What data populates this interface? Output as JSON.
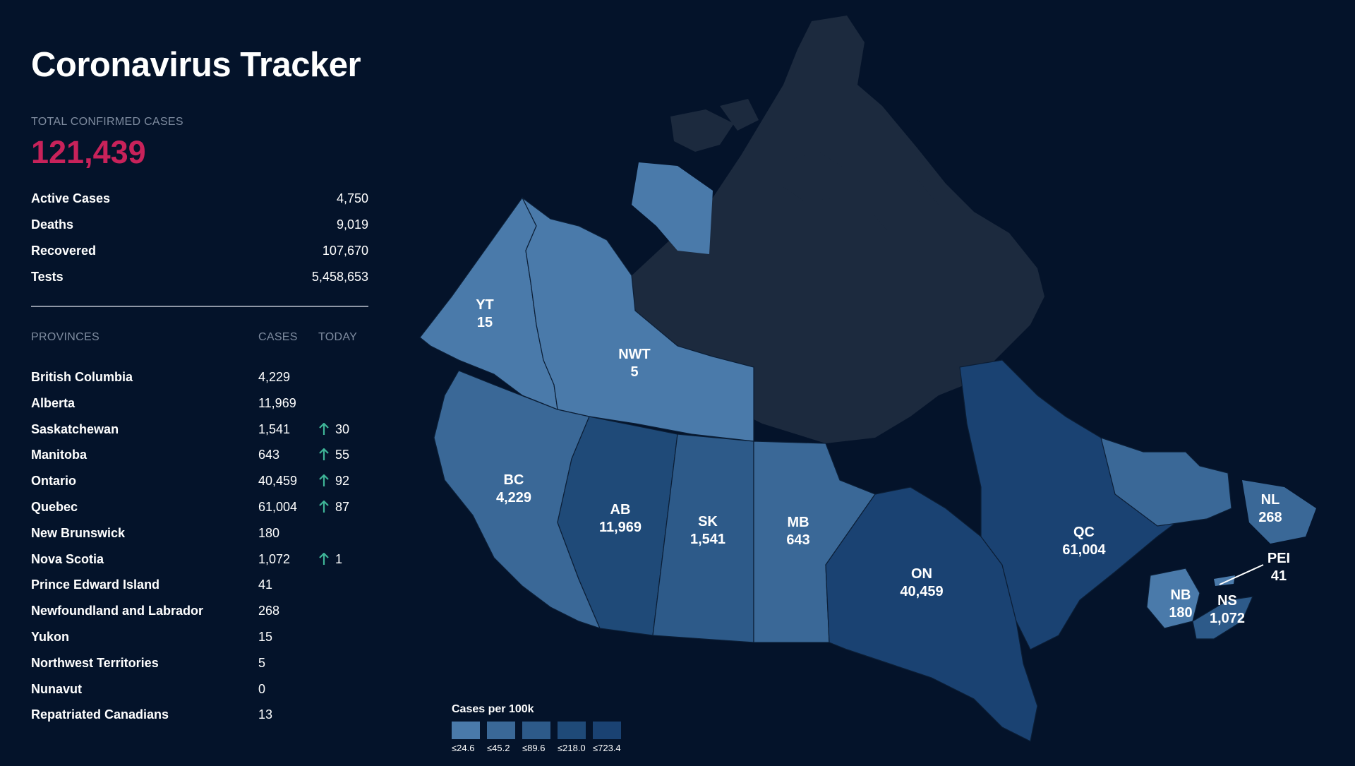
{
  "title": "Coronavirus Tracker",
  "total": {
    "label": "TOTAL CONFIRMED CASES",
    "value": "121,439"
  },
  "stats": [
    {
      "label": "Active Cases",
      "value": "4,750"
    },
    {
      "label": "Deaths",
      "value": "9,019"
    },
    {
      "label": "Recovered",
      "value": "107,670"
    },
    {
      "label": "Tests",
      "value": "5,458,653"
    }
  ],
  "provinces_header": {
    "name": "PROVINCES",
    "cases": "CASES",
    "today": "TODAY"
  },
  "provinces": [
    {
      "name": "British Columbia",
      "cases": "4,229",
      "today": ""
    },
    {
      "name": "Alberta",
      "cases": "11,969",
      "today": ""
    },
    {
      "name": "Saskatchewan",
      "cases": "1,541",
      "today": "30"
    },
    {
      "name": "Manitoba",
      "cases": "643",
      "today": "55"
    },
    {
      "name": "Ontario",
      "cases": "40,459",
      "today": "92"
    },
    {
      "name": "Quebec",
      "cases": "61,004",
      "today": "87"
    },
    {
      "name": "New Brunswick",
      "cases": "180",
      "today": ""
    },
    {
      "name": "Nova Scotia",
      "cases": "1,072",
      "today": "1"
    },
    {
      "name": "Prince Edward Island",
      "cases": "41",
      "today": ""
    },
    {
      "name": "Newfoundland and Labrador",
      "cases": "268",
      "today": ""
    },
    {
      "name": "Yukon",
      "cases": "15",
      "today": ""
    },
    {
      "name": "Northwest Territories",
      "cases": "5",
      "today": ""
    },
    {
      "name": "Nunavut",
      "cases": "0",
      "today": ""
    },
    {
      "name": "Repatriated Canadians",
      "cases": "13",
      "today": ""
    }
  ],
  "map_labels": {
    "yt": {
      "abbr": "YT",
      "value": "15"
    },
    "nwt": {
      "abbr": "NWT",
      "value": "5"
    },
    "bc": {
      "abbr": "BC",
      "value": "4,229"
    },
    "ab": {
      "abbr": "AB",
      "value": "11,969"
    },
    "sk": {
      "abbr": "SK",
      "value": "1,541"
    },
    "mb": {
      "abbr": "MB",
      "value": "643"
    },
    "on": {
      "abbr": "ON",
      "value": "40,459"
    },
    "qc": {
      "abbr": "QC",
      "value": "61,004"
    },
    "nl": {
      "abbr": "NL",
      "value": "268"
    },
    "pei": {
      "abbr": "PEI",
      "value": "41"
    },
    "nb": {
      "abbr": "NB",
      "value": "180"
    },
    "ns": {
      "abbr": "NS",
      "value": "1,072"
    }
  },
  "legend": {
    "title": "Cases per 100k",
    "items": [
      {
        "label": "≤24.6",
        "color": "#4a7aaa"
      },
      {
        "label": "≤45.2",
        "color": "#3a6897"
      },
      {
        "label": "≤89.6",
        "color": "#2d5a89"
      },
      {
        "label": "≤218.0",
        "color": "#1f4a78"
      },
      {
        "label": "≤723.4",
        "color": "#1a4272"
      }
    ]
  },
  "colors": {
    "background": "#04132a",
    "accent": "#c8225a",
    "trend_up": "#3fb598",
    "nunavut": "#1c2a3e"
  }
}
